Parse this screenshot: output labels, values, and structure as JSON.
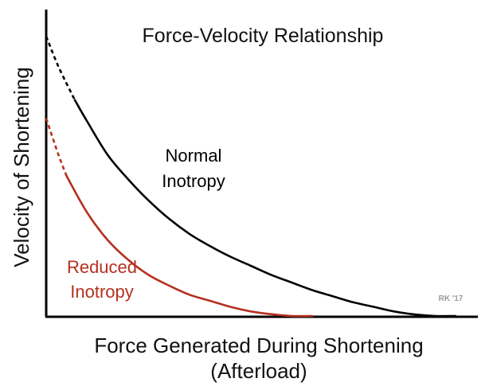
{
  "chart_data": {
    "type": "line",
    "title": "Force-Velocity Relationship",
    "xlabel": [
      "Force Generated During Shortening",
      "(Afterload)"
    ],
    "ylabel": "Velocity of Shortening",
    "grid": false,
    "legend": "none",
    "xlim": [
      0,
      100
    ],
    "ylim": [
      0,
      100
    ],
    "series": [
      {
        "label_lines": [
          "Normal",
          "Inotropy"
        ],
        "color": "#000000",
        "extrapolated_dashed_until_x": 7,
        "x": [
          0,
          3,
          7,
          10,
          15,
          20,
          25,
          30,
          35,
          40,
          45,
          50,
          55,
          60,
          65,
          70,
          75,
          80,
          85,
          90,
          95,
          100
        ],
        "y": [
          92,
          82,
          71,
          64,
          53,
          45,
          38,
          32,
          27,
          23,
          19.5,
          16.5,
          13.5,
          11,
          8.5,
          6.5,
          4.5,
          3,
          1.5,
          0.5,
          0,
          0
        ]
      },
      {
        "label_lines": [
          "Reduced",
          "Inotropy"
        ],
        "color": "#b5301f",
        "extrapolated_dashed_until_x": 5,
        "x": [
          0,
          3,
          5,
          10,
          15,
          20,
          25,
          30,
          35,
          40,
          45,
          50,
          55,
          60,
          65
        ],
        "y": [
          65,
          53,
          46,
          34,
          25,
          18.5,
          13.5,
          10,
          7,
          5,
          3,
          1.5,
          0.6,
          0,
          0
        ]
      }
    ]
  },
  "watermark": "RK '17"
}
